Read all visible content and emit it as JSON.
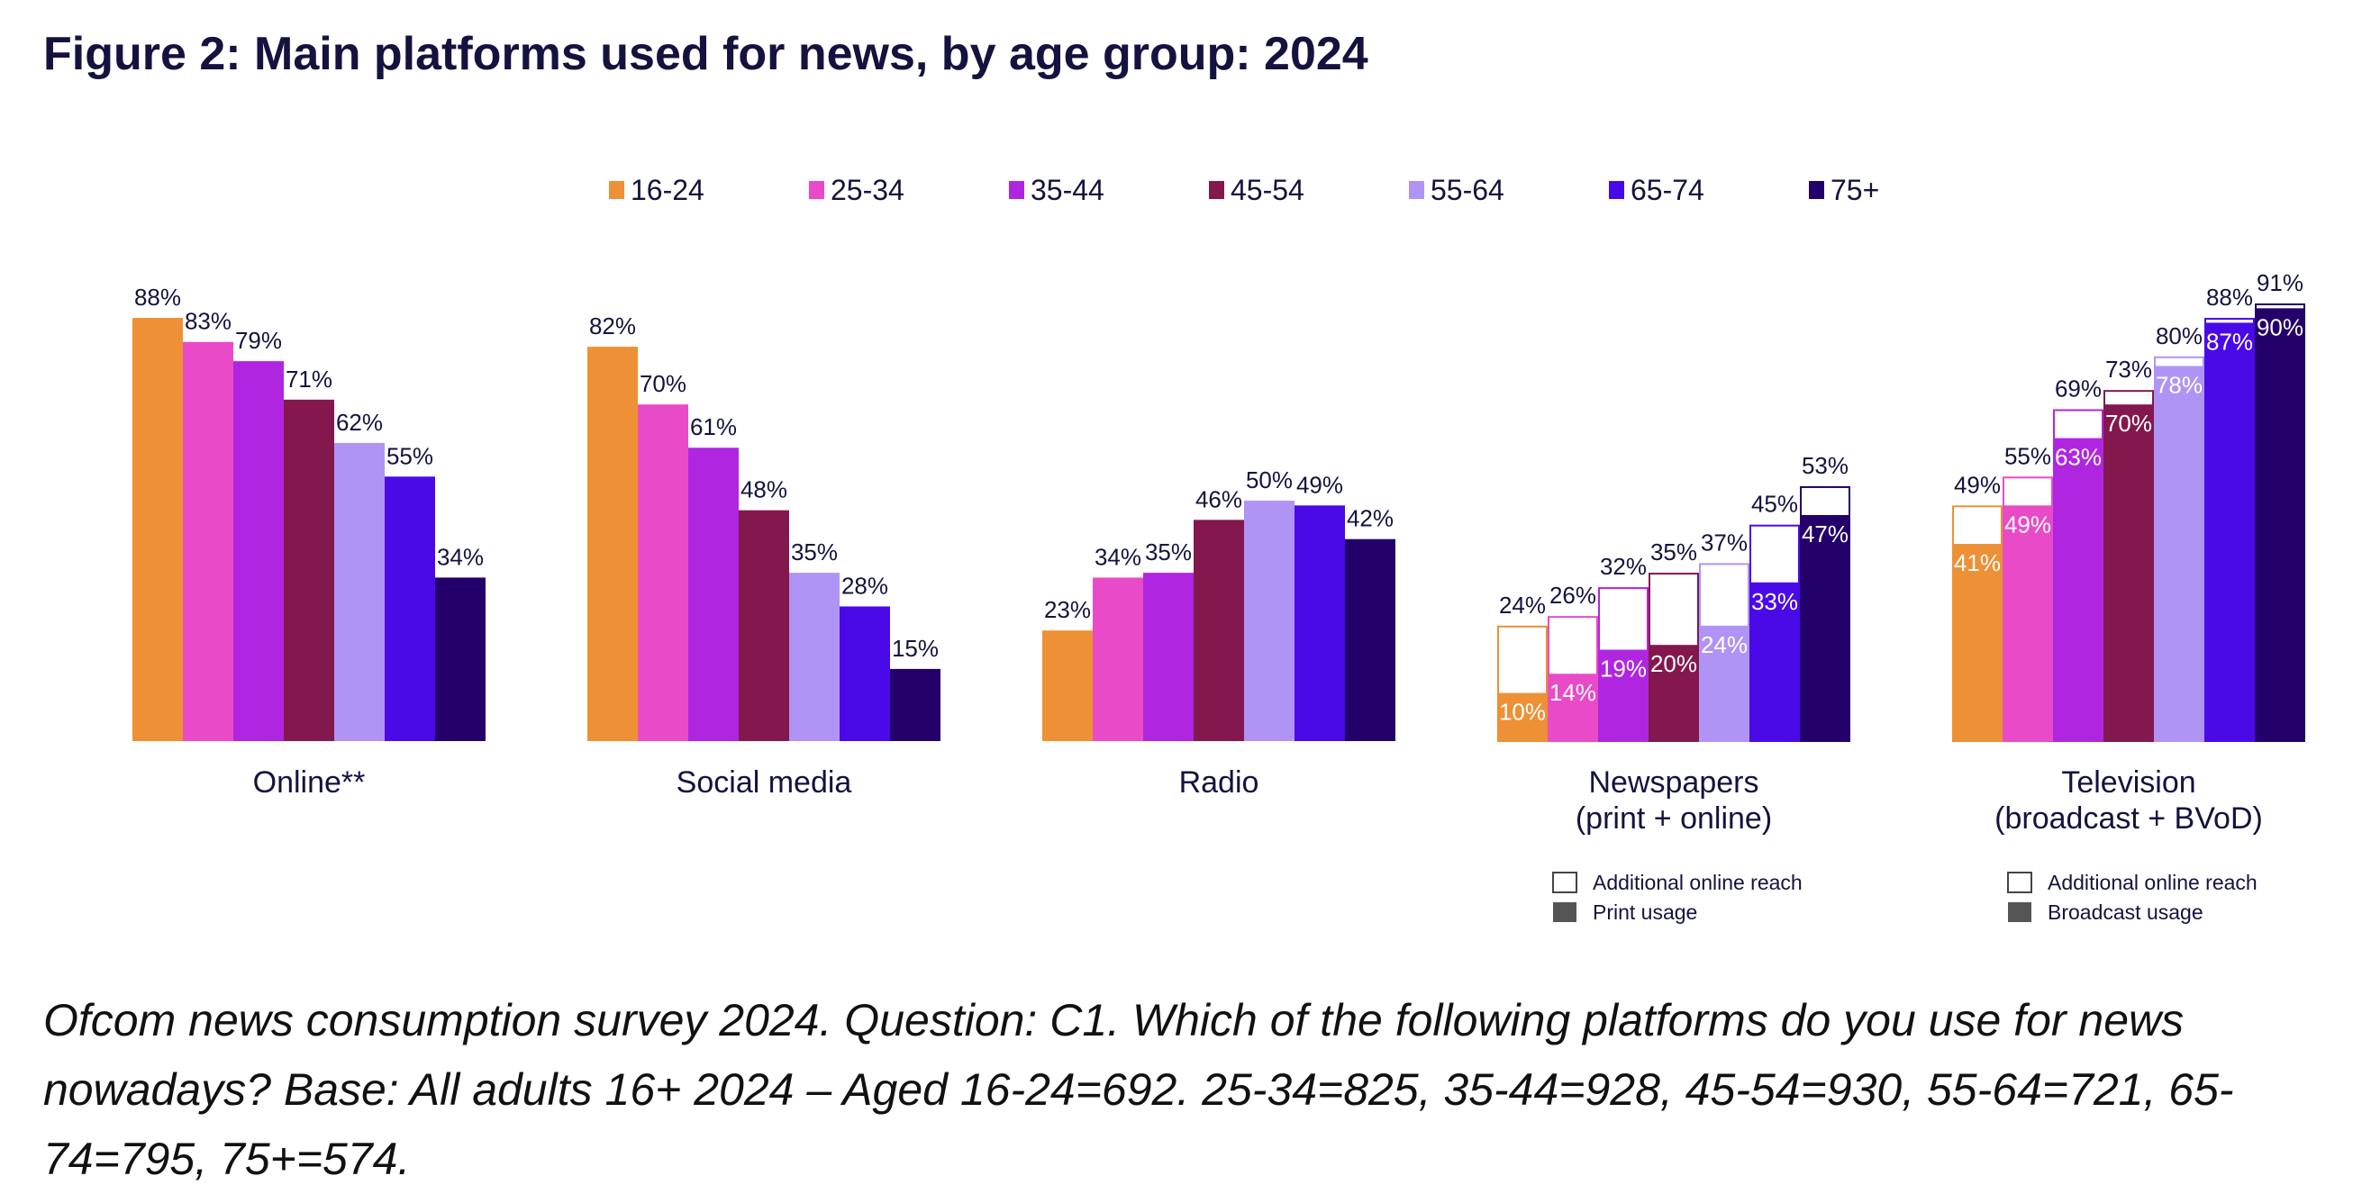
{
  "title": "Figure 2: Main platforms used for news, by age group: 2024",
  "caption": "Ofcom news consumption survey 2024. Question: C1. Which of the following platforms do you use for news nowadays? Base: All adults 16+ 2024 – Aged 16-24=692. 25-34=825, 35-44=928, 45-54=930, 55-64=721, 65-74=795, 75+=574.",
  "chart_data": {
    "type": "bar",
    "title": "Figure 2: Main platforms used for news, by age group: 2024",
    "xlabel": "",
    "ylabel": "",
    "ylim": [
      0,
      100
    ],
    "grid": false,
    "legend_position": "top",
    "unit": "%",
    "categories": [
      "Online**",
      "Social media",
      "Radio",
      "Newspapers\n(print + online)",
      "Television\n(broadcast + BVoD)"
    ],
    "series": [
      {
        "name": "16-24",
        "color": "#EE9035",
        "values": [
          88,
          82,
          23,
          24,
          49
        ],
        "inner": [
          null,
          null,
          null,
          10,
          41
        ]
      },
      {
        "name": "25-34",
        "color": "#E94BC8",
        "values": [
          83,
          70,
          34,
          26,
          55
        ],
        "inner": [
          null,
          null,
          null,
          14,
          49
        ]
      },
      {
        "name": "35-44",
        "color": "#B026E0",
        "values": [
          79,
          61,
          35,
          32,
          69
        ],
        "inner": [
          null,
          null,
          null,
          19,
          63
        ]
      },
      {
        "name": "45-54",
        "color": "#83184E",
        "values": [
          71,
          48,
          46,
          35,
          73
        ],
        "inner": [
          null,
          null,
          null,
          20,
          70
        ]
      },
      {
        "name": "55-64",
        "color": "#B094F5",
        "values": [
          62,
          35,
          50,
          37,
          80
        ],
        "inner": [
          null,
          null,
          null,
          24,
          78
        ]
      },
      {
        "name": "65-74",
        "color": "#4A0AE8",
        "values": [
          55,
          28,
          49,
          45,
          88
        ],
        "inner": [
          null,
          null,
          null,
          33,
          87
        ]
      },
      {
        "name": "75+",
        "color": "#24006B",
        "values": [
          34,
          15,
          42,
          53,
          91
        ],
        "inner": [
          null,
          null,
          null,
          47,
          90
        ]
      }
    ],
    "sub_legends": [
      {
        "category_index": 3,
        "items": [
          "Additional online reach",
          "Print usage"
        ]
      },
      {
        "category_index": 4,
        "items": [
          "Additional online reach",
          "Broadcast usage"
        ]
      }
    ]
  }
}
